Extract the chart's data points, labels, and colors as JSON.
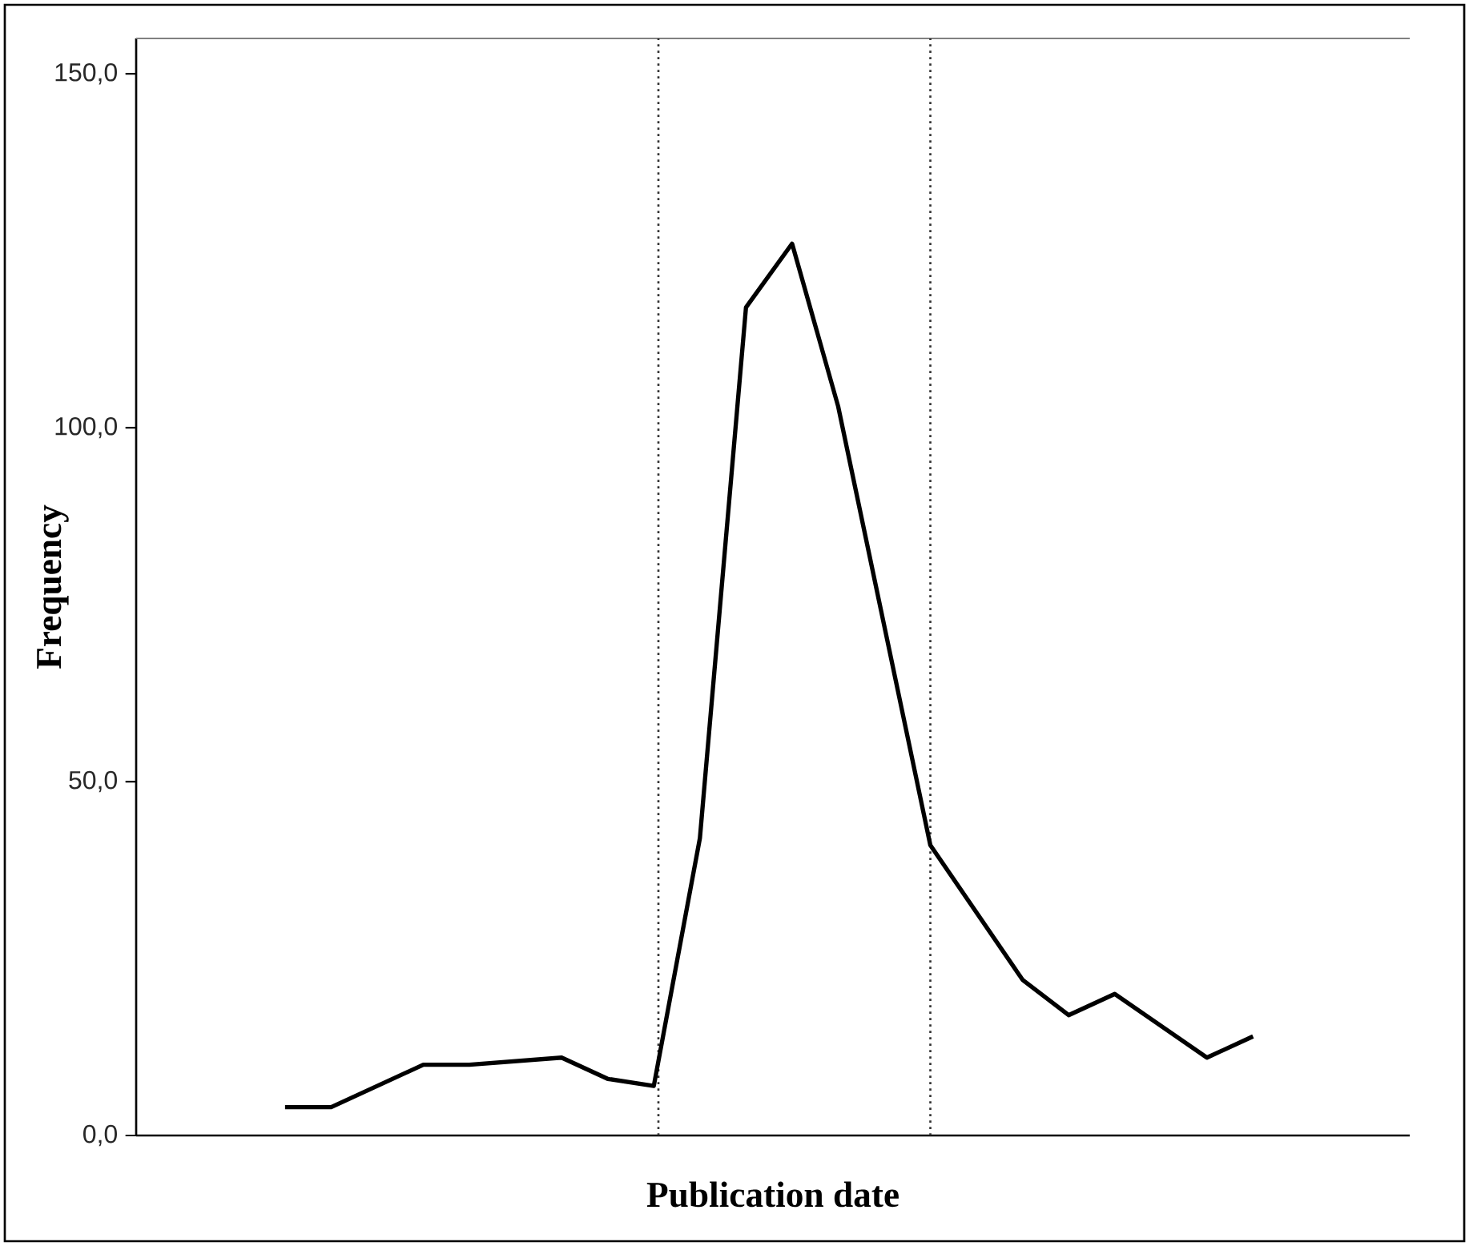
{
  "chart_data": {
    "type": "line",
    "xlabel": "Publication date",
    "ylabel": "Frequency",
    "categories": [
      null,
      null,
      null,
      null,
      null,
      null,
      null,
      null,
      null,
      null,
      null,
      null,
      null,
      null,
      null,
      null,
      null,
      null,
      null,
      null,
      null,
      null
    ],
    "series": [
      {
        "color": "#000000",
        "values": [
          4,
          4,
          null,
          10,
          10,
          null,
          11,
          8,
          7,
          42,
          117,
          126,
          103,
          null,
          41,
          null,
          22,
          17,
          20,
          null,
          11,
          14
        ]
      }
    ],
    "ylim": [
      0,
      155
    ],
    "yticks": [
      {
        "value": 0,
        "label": "0,0"
      },
      {
        "value": 50,
        "label": "50,0"
      },
      {
        "value": 100,
        "label": "100,0"
      },
      {
        "value": 150,
        "label": "150,0"
      }
    ],
    "line_style": "solid"
  }
}
